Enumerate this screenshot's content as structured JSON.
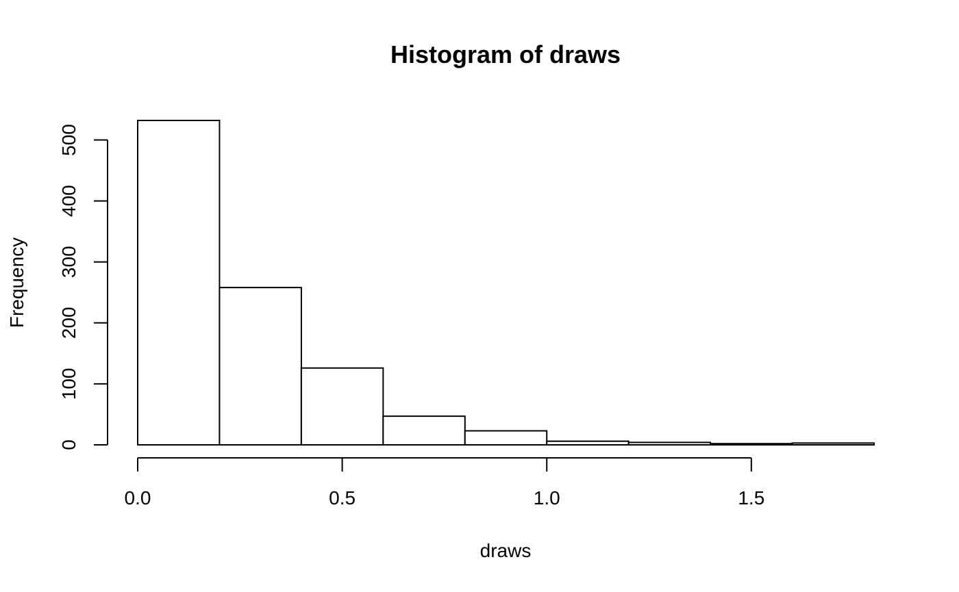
{
  "chart_data": {
    "type": "bar",
    "title": "Histogram of draws",
    "xlabel": "draws",
    "ylabel": "Frequency",
    "bins": [
      {
        "x0": 0.0,
        "x1": 0.2,
        "count": 532
      },
      {
        "x0": 0.2,
        "x1": 0.4,
        "count": 258
      },
      {
        "x0": 0.4,
        "x1": 0.6,
        "count": 126
      },
      {
        "x0": 0.6,
        "x1": 0.8,
        "count": 47
      },
      {
        "x0": 0.8,
        "x1": 1.0,
        "count": 23
      },
      {
        "x0": 1.0,
        "x1": 1.2,
        "count": 6
      },
      {
        "x0": 1.2,
        "x1": 1.4,
        "count": 4
      },
      {
        "x0": 1.4,
        "x1": 1.6,
        "count": 2
      },
      {
        "x0": 1.6,
        "x1": 1.8,
        "count": 3
      }
    ],
    "xticks": [
      "0.0",
      "0.5",
      "1.0",
      "1.5"
    ],
    "xtick_values": [
      0.0,
      0.5,
      1.0,
      1.5
    ],
    "yticks": [
      "0",
      "100",
      "200",
      "300",
      "400",
      "500"
    ],
    "ytick_values": [
      0,
      100,
      200,
      300,
      400,
      500
    ],
    "xlim": [
      0.0,
      1.8
    ],
    "ylim": [
      0,
      532
    ],
    "grid": false,
    "legend": "none"
  }
}
